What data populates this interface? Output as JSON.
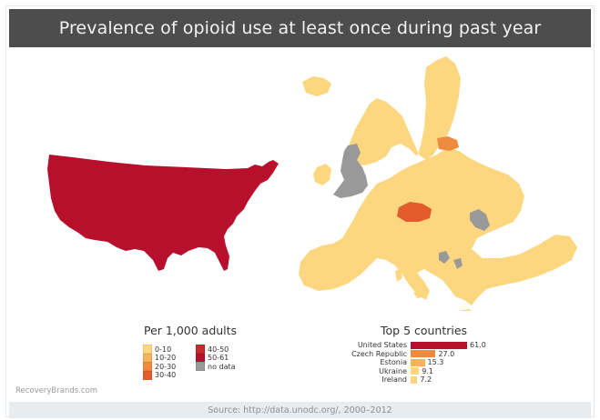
{
  "header": {
    "title": "Prevalence of opioid use at least once during past year"
  },
  "colors": {
    "c0_10": "#fcd77f",
    "c10_20": "#f7b35c",
    "c20_30": "#f08a3e",
    "c30_40": "#e35c2b",
    "c40_50": "#c92a2a",
    "c50_61": "#b8102c",
    "no_data": "#999999"
  },
  "legend": {
    "title": "Per 1,000 adults",
    "items": [
      {
        "label": "0-10",
        "color": "#fcd77f"
      },
      {
        "label": "10-20",
        "color": "#f7b35c"
      },
      {
        "label": "20-30",
        "color": "#f08a3e"
      },
      {
        "label": "30-40",
        "color": "#e35c2b"
      },
      {
        "label": "40-50",
        "color": "#c92a2a"
      },
      {
        "label": "50-61",
        "color": "#b8102c"
      },
      {
        "label": "no data",
        "color": "#999999"
      }
    ]
  },
  "top5": {
    "title": "Top 5 countries",
    "max": 61.0,
    "rows": [
      {
        "country": "United States",
        "value": 61.0,
        "value_label": "61.0",
        "color": "#b8102c"
      },
      {
        "country": "Czech Republic",
        "value": 27.0,
        "value_label": "27.0",
        "color": "#f08a3e"
      },
      {
        "country": "Estonia",
        "value": 15.3,
        "value_label": "15.3",
        "color": "#f7b35c"
      },
      {
        "country": "Ukraine",
        "value": 9.1,
        "value_label": "9.1",
        "color": "#fcd77f"
      },
      {
        "country": "Ireland",
        "value": 7.2,
        "value_label": "7.2",
        "color": "#fcd77f"
      }
    ]
  },
  "map": {
    "regions": [
      {
        "name": "United States",
        "category": "50-61"
      },
      {
        "name": "Czech Republic",
        "category": "20-30"
      },
      {
        "name": "Estonia",
        "category": "10-20"
      },
      {
        "name": "United Kingdom",
        "category": "no data"
      },
      {
        "name": "Romania",
        "category": "no data"
      },
      {
        "name": "Rest of Europe",
        "category": "0-10"
      }
    ]
  },
  "watermark": "RecoveryBrands.com",
  "source": "Source: http://data.unodc.org/, 2000–2012"
}
